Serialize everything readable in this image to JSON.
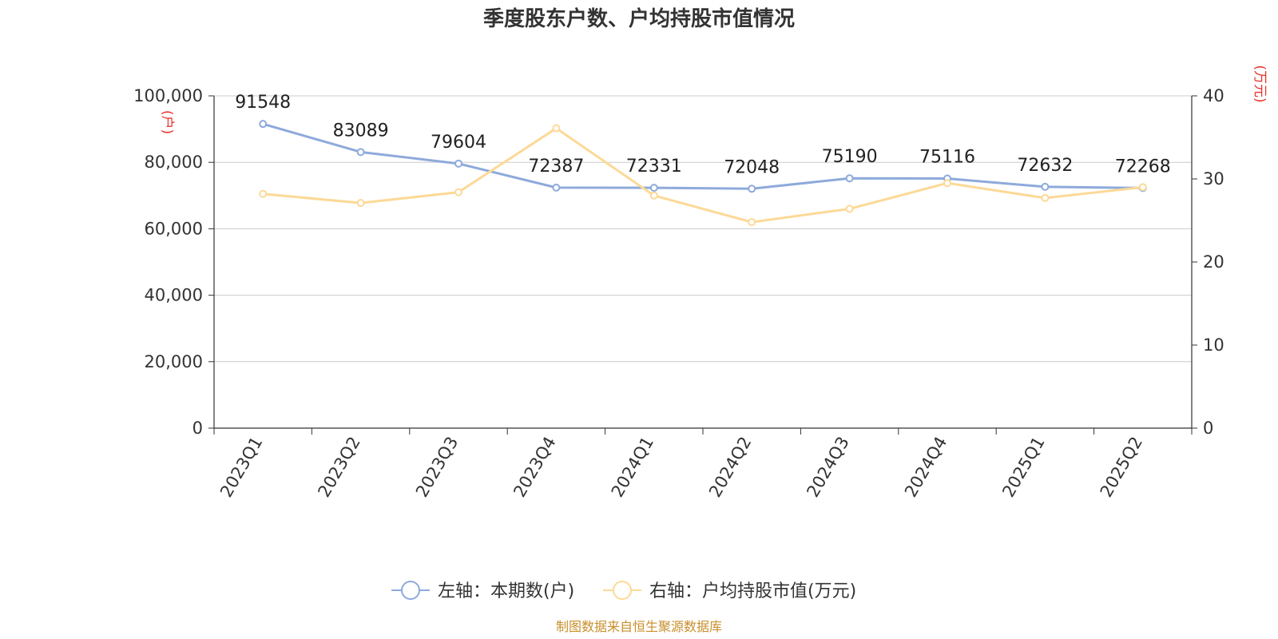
{
  "chart_data": {
    "type": "line",
    "title": "季度股东户数、户均持股市值情况",
    "categories": [
      "2023Q1",
      "2023Q2",
      "2023Q3",
      "2023Q4",
      "2024Q1",
      "2024Q2",
      "2024Q3",
      "2024Q4",
      "2025Q1",
      "2025Q2"
    ],
    "left_axis": {
      "unit": "(户)",
      "ylim": [
        0,
        100000
      ],
      "ticks": [
        "0",
        "20,000",
        "40,000",
        "60,000",
        "80,000",
        "100,000"
      ]
    },
    "right_axis": {
      "unit": "(万元)",
      "ylim": [
        0,
        40
      ],
      "ticks": [
        "0",
        "10",
        "20",
        "30",
        "40"
      ]
    },
    "series": [
      {
        "name": "左轴：本期数(户)",
        "axis": "left",
        "color": "#8eaadb",
        "values": [
          91548,
          83089,
          79604,
          72387,
          72331,
          72048,
          75190,
          75116,
          72632,
          72268
        ],
        "labels": [
          "91548",
          "83089",
          "79604",
          "72387",
          "72331",
          "72048",
          "75190",
          "75116",
          "72632",
          "72268"
        ]
      },
      {
        "name": "右轴：户均持股市值(万元)",
        "axis": "right",
        "color": "#fcd997",
        "values": [
          28.2,
          27.1,
          28.4,
          36.1,
          28.0,
          24.8,
          26.4,
          29.5,
          27.7,
          29.0
        ]
      }
    ],
    "grid": true,
    "legend_position": "bottom-center",
    "unit_color": "#e8312a"
  },
  "source_text": "制图数据来自恒生聚源数据库",
  "source_color": "#c98f2b"
}
